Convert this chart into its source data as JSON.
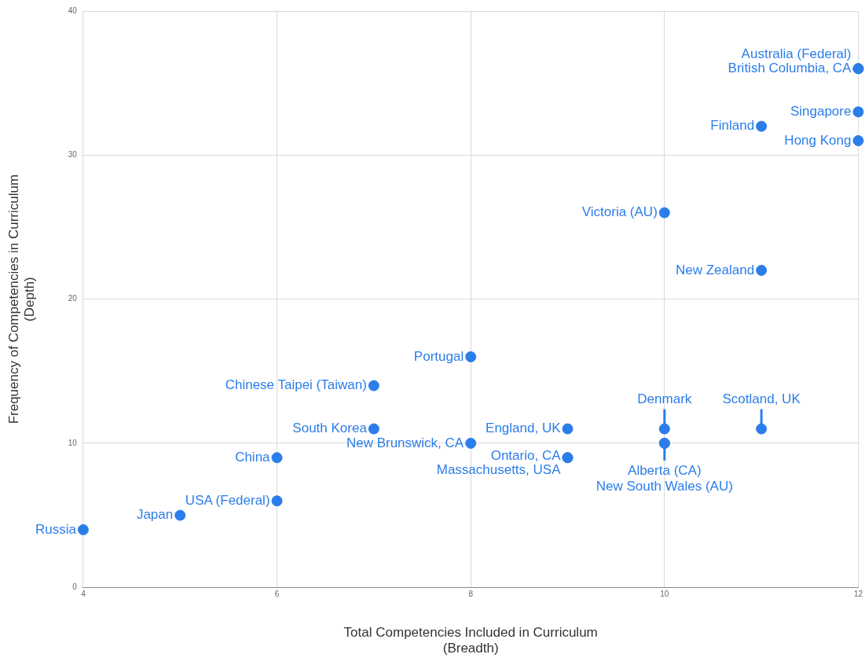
{
  "chart_data": {
    "type": "scatter",
    "xlabel": "Total Competencies Included in Curriculum\n(Breadth)",
    "ylabel": "Frequency of Competencies in Curriculum\n(Depth)",
    "series": [
      {
        "color": "#2b7de9",
        "x": [
          4,
          5,
          6,
          6,
          7,
          7,
          8,
          8,
          9,
          9,
          9,
          10,
          10,
          10,
          11,
          10,
          11,
          11,
          12,
          12,
          12,
          12
        ],
        "values": [
          4,
          5,
          6,
          9,
          11,
          14,
          16,
          10,
          11,
          9,
          9,
          11,
          10,
          10,
          11,
          26,
          22,
          32,
          31,
          33,
          36,
          36
        ]
      }
    ],
    "xlim": [
      4,
      12
    ],
    "ylim": [
      0,
      40
    ],
    "xticks": [
      4,
      6,
      8,
      10,
      12
    ],
    "yticks": [
      0,
      10,
      20,
      30,
      40
    ],
    "grid": true,
    "legend": false,
    "marker": "circle",
    "annotations": [
      {
        "text": "Russia",
        "x": 4,
        "y": 4
      },
      {
        "text": "Japan",
        "x": 5,
        "y": 5
      },
      {
        "text": "USA (Federal)",
        "x": 6,
        "y": 6
      },
      {
        "text": "China",
        "x": 6,
        "y": 9
      },
      {
        "text": "South Korea",
        "x": 7,
        "y": 11
      },
      {
        "text": "Chinese Taipei (Taiwan)",
        "x": 7,
        "y": 14
      },
      {
        "text": "Portugal",
        "x": 8,
        "y": 16
      },
      {
        "text": "New Brunswick, CA",
        "x": 8,
        "y": 10
      },
      {
        "text": "England, UK",
        "x": 9,
        "y": 11
      },
      {
        "text": "Ontario, CA",
        "x": 9,
        "y": 9
      },
      {
        "text": "Massachusetts, USA",
        "x": 9,
        "y": 9
      },
      {
        "text": "Denmark",
        "x": 10,
        "y": 11
      },
      {
        "text": "Alberta (CA)",
        "x": 10,
        "y": 10
      },
      {
        "text": "New South Wales (AU)",
        "x": 10,
        "y": 10
      },
      {
        "text": "Scotland, UK",
        "x": 11,
        "y": 11
      },
      {
        "text": "Victoria (AU)",
        "x": 10,
        "y": 26
      },
      {
        "text": "New Zealand",
        "x": 11,
        "y": 22
      },
      {
        "text": "Finland",
        "x": 11,
        "y": 32
      },
      {
        "text": "Hong Kong",
        "x": 12,
        "y": 31
      },
      {
        "text": "Singapore",
        "x": 12,
        "y": 33
      },
      {
        "text": "Australia (Federal)",
        "x": 12,
        "y": 36
      },
      {
        "text": "British Columbia, CA",
        "x": 12,
        "y": 36
      }
    ]
  }
}
